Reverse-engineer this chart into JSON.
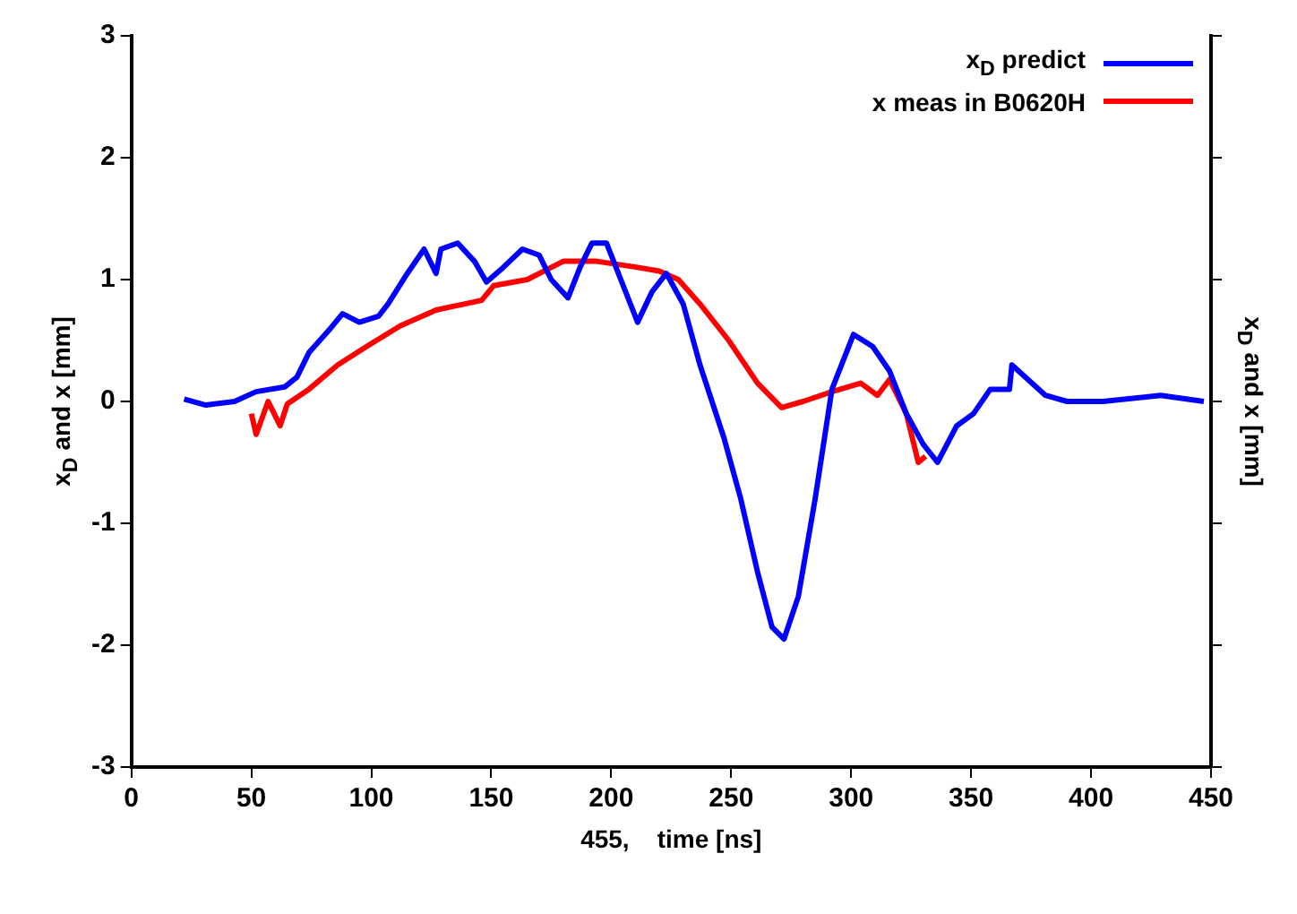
{
  "chart_data": {
    "type": "line",
    "xlabel": "455,    time [ns]",
    "ylabel": "x$_{D}$ and x [mm]",
    "y2label": "x$_{D}$ and x [mm]",
    "xlim": [
      0,
      450
    ],
    "xticks": [
      0,
      50,
      100,
      150,
      200,
      250,
      300,
      350,
      400,
      450
    ],
    "ylim": [
      -3,
      3
    ],
    "yticks": [
      -3,
      -2,
      -1,
      0,
      1,
      2,
      3
    ],
    "legend": "top right",
    "marker": "none",
    "line_style": "solid",
    "series": [
      {
        "name": "x$_{D}$ predict",
        "color": "#0000ff",
        "x": [
          22,
          31,
          43,
          52,
          64,
          69,
          74,
          83,
          88,
          95,
          103,
          107,
          115,
          122,
          127,
          129,
          136,
          143,
          148,
          155,
          163,
          170,
          175,
          182,
          187,
          192,
          198,
          204,
          211,
          217,
          223,
          230,
          237,
          247,
          254,
          261,
          267,
          272,
          278,
          285,
          292,
          301,
          309,
          316,
          323,
          330,
          336,
          344,
          351,
          358,
          366,
          367,
          381,
          390,
          405,
          429,
          447
        ],
        "values": [
          0.02,
          -0.03,
          0,
          0.08,
          0.12,
          0.2,
          0.4,
          0.6,
          0.72,
          0.65,
          0.7,
          0.8,
          1.05,
          1.25,
          1.05,
          1.25,
          1.3,
          1.15,
          0.98,
          1.1,
          1.25,
          1.2,
          1.0,
          0.85,
          1.1,
          1.3,
          1.3,
          1.0,
          0.65,
          0.9,
          1.05,
          0.8,
          0.3,
          -0.3,
          -0.8,
          -1.4,
          -1.85,
          -1.95,
          -1.6,
          -0.8,
          0.1,
          0.55,
          0.45,
          0.25,
          -0.1,
          -0.35,
          -0.5,
          -0.2,
          -0.1,
          0.1,
          0.1,
          0.3,
          0.05,
          0,
          0,
          0.05,
          0
        ]
      },
      {
        "name": "x meas in B0620H",
        "color": "#ff0000",
        "x": [
          50,
          52,
          57,
          62,
          65,
          74,
          86,
          98,
          112,
          127,
          146,
          151,
          165,
          180,
          194,
          211,
          220,
          228,
          237,
          249,
          261,
          271,
          280,
          292,
          304,
          311,
          316,
          323,
          328,
          331
        ],
        "values": [
          -0.1,
          -0.27,
          0,
          -0.2,
          -0.02,
          0.1,
          0.3,
          0.45,
          0.62,
          0.75,
          0.83,
          0.95,
          1.0,
          1.15,
          1.15,
          1.1,
          1.07,
          1.0,
          0.8,
          0.5,
          0.15,
          -0.05,
          0,
          0.08,
          0.15,
          0.05,
          0.18,
          -0.1,
          -0.5,
          -0.45
        ]
      }
    ]
  }
}
